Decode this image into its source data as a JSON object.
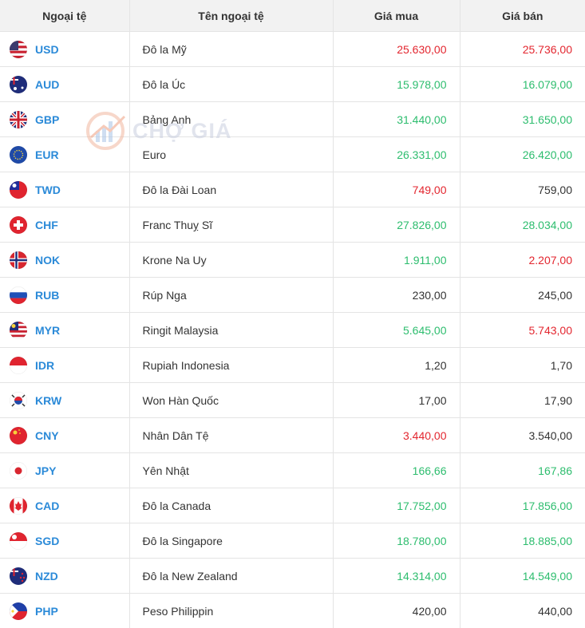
{
  "watermark": "CHỢ GIÁ",
  "table": {
    "columns": [
      "Ngoại tệ",
      "Tên ngoại tệ",
      "Giá mua",
      "Giá bán"
    ],
    "rows": [
      {
        "code": "USD",
        "name": "Đô la Mỹ",
        "buy": {
          "text": "25.630,00",
          "color": "#e3262f"
        },
        "sell": {
          "text": "25.736,00",
          "color": "#e3262f"
        }
      },
      {
        "code": "AUD",
        "name": "Đô la Úc",
        "buy": {
          "text": "15.978,00",
          "color": "#2dbd6e"
        },
        "sell": {
          "text": "16.079,00",
          "color": "#2dbd6e"
        }
      },
      {
        "code": "GBP",
        "name": "Bảng Anh",
        "buy": {
          "text": "31.440,00",
          "color": "#2dbd6e"
        },
        "sell": {
          "text": "31.650,00",
          "color": "#2dbd6e"
        }
      },
      {
        "code": "EUR",
        "name": "Euro",
        "buy": {
          "text": "26.331,00",
          "color": "#2dbd6e"
        },
        "sell": {
          "text": "26.420,00",
          "color": "#2dbd6e"
        }
      },
      {
        "code": "TWD",
        "name": "Đô la Đài Loan",
        "buy": {
          "text": "749,00",
          "color": "#e3262f"
        },
        "sell": {
          "text": "759,00",
          "color": "#333333"
        }
      },
      {
        "code": "CHF",
        "name": "Franc Thuỵ Sĩ",
        "buy": {
          "text": "27.826,00",
          "color": "#2dbd6e"
        },
        "sell": {
          "text": "28.034,00",
          "color": "#2dbd6e"
        }
      },
      {
        "code": "NOK",
        "name": "Krone Na Uy",
        "buy": {
          "text": "1.911,00",
          "color": "#2dbd6e"
        },
        "sell": {
          "text": "2.207,00",
          "color": "#e3262f"
        }
      },
      {
        "code": "RUB",
        "name": "Rúp Nga",
        "buy": {
          "text": "230,00",
          "color": "#333333"
        },
        "sell": {
          "text": "245,00",
          "color": "#333333"
        }
      },
      {
        "code": "MYR",
        "name": "Ringit Malaysia",
        "buy": {
          "text": "5.645,00",
          "color": "#2dbd6e"
        },
        "sell": {
          "text": "5.743,00",
          "color": "#e3262f"
        }
      },
      {
        "code": "IDR",
        "name": "Rupiah Indonesia",
        "buy": {
          "text": "1,20",
          "color": "#333333"
        },
        "sell": {
          "text": "1,70",
          "color": "#333333"
        }
      },
      {
        "code": "KRW",
        "name": "Won Hàn Quốc",
        "buy": {
          "text": "17,00",
          "color": "#333333"
        },
        "sell": {
          "text": "17,90",
          "color": "#333333"
        }
      },
      {
        "code": "CNY",
        "name": "Nhân Dân Tệ",
        "buy": {
          "text": "3.440,00",
          "color": "#e3262f"
        },
        "sell": {
          "text": "3.540,00",
          "color": "#333333"
        }
      },
      {
        "code": "JPY",
        "name": "Yên Nhật",
        "buy": {
          "text": "166,66",
          "color": "#2dbd6e"
        },
        "sell": {
          "text": "167,86",
          "color": "#2dbd6e"
        }
      },
      {
        "code": "CAD",
        "name": "Đô la Canada",
        "buy": {
          "text": "17.752,00",
          "color": "#2dbd6e"
        },
        "sell": {
          "text": "17.856,00",
          "color": "#2dbd6e"
        }
      },
      {
        "code": "SGD",
        "name": "Đô la Singapore",
        "buy": {
          "text": "18.780,00",
          "color": "#2dbd6e"
        },
        "sell": {
          "text": "18.885,00",
          "color": "#2dbd6e"
        }
      },
      {
        "code": "NZD",
        "name": "Đô la New Zealand",
        "buy": {
          "text": "14.314,00",
          "color": "#2dbd6e"
        },
        "sell": {
          "text": "14.549,00",
          "color": "#2dbd6e"
        }
      },
      {
        "code": "PHP",
        "name": "Peso Philippin",
        "buy": {
          "text": "420,00",
          "color": "#333333"
        },
        "sell": {
          "text": "440,00",
          "color": "#333333"
        }
      }
    ]
  }
}
